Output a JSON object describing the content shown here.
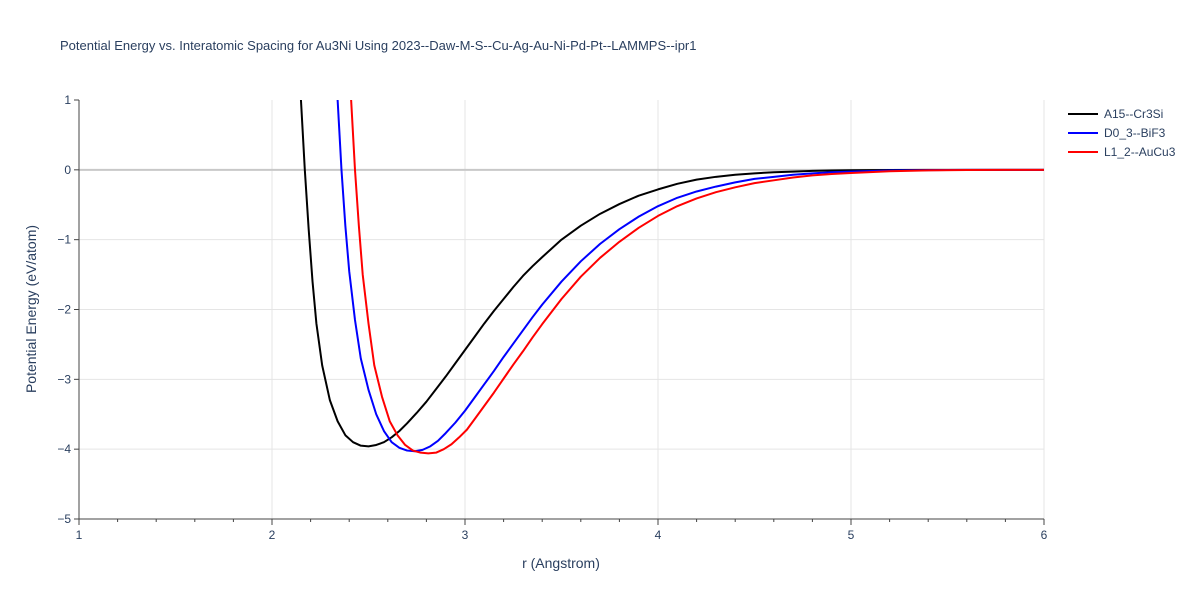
{
  "chart_data": {
    "type": "line",
    "title": "Potential Energy vs. Interatomic Spacing for Au3Ni Using 2023--Daw-M-S--Cu-Ag-Au-Ni-Pd-Pt--LAMMPS--ipr1",
    "xlabel": "r (Angstrom)",
    "ylabel": "Potential Energy (eV/atom)",
    "xlim": [
      1,
      6
    ],
    "ylim": [
      -5,
      1
    ],
    "x_ticks": [
      1,
      2,
      3,
      4,
      5,
      6
    ],
    "y_ticks": [
      1,
      0,
      -1,
      -2,
      -3,
      -4,
      -5
    ],
    "x_tick_labels": [
      "1",
      "2",
      "3",
      "4",
      "5",
      "6"
    ],
    "y_tick_labels": [
      "1",
      "0",
      "−1",
      "−2",
      "−3",
      "−4",
      "−5"
    ],
    "grid": true,
    "legend_position": "top-right",
    "series": [
      {
        "name": "A15--Cr3Si",
        "color": "#000000",
        "x": [
          2.15,
          2.17,
          2.19,
          2.21,
          2.23,
          2.26,
          2.3,
          2.34,
          2.38,
          2.42,
          2.46,
          2.5,
          2.54,
          2.58,
          2.62,
          2.66,
          2.7,
          2.75,
          2.8,
          2.85,
          2.9,
          2.95,
          3.0,
          3.05,
          3.1,
          3.15,
          3.2,
          3.25,
          3.3,
          3.35,
          3.4,
          3.5,
          3.6,
          3.7,
          3.8,
          3.9,
          4.0,
          4.1,
          4.2,
          4.3,
          4.4,
          4.5,
          4.6,
          4.7,
          4.8,
          4.9,
          5.0,
          5.2,
          5.4,
          5.6,
          5.8,
          6.0
        ],
        "y": [
          1.0,
          0.0,
          -0.85,
          -1.6,
          -2.2,
          -2.8,
          -3.3,
          -3.6,
          -3.8,
          -3.9,
          -3.95,
          -3.96,
          -3.94,
          -3.9,
          -3.83,
          -3.74,
          -3.63,
          -3.48,
          -3.32,
          -3.14,
          -2.96,
          -2.77,
          -2.58,
          -2.39,
          -2.2,
          -2.02,
          -1.85,
          -1.68,
          -1.52,
          -1.38,
          -1.25,
          -1.0,
          -0.8,
          -0.63,
          -0.49,
          -0.37,
          -0.28,
          -0.2,
          -0.14,
          -0.1,
          -0.07,
          -0.05,
          -0.035,
          -0.025,
          -0.015,
          -0.01,
          -0.006,
          -0.002,
          0.0,
          0.0,
          0.0,
          0.0
        ]
      },
      {
        "name": "D0_3--BiF3",
        "color": "#0000ff",
        "x": [
          2.34,
          2.36,
          2.38,
          2.4,
          2.43,
          2.46,
          2.5,
          2.54,
          2.58,
          2.62,
          2.66,
          2.7,
          2.74,
          2.78,
          2.82,
          2.86,
          2.9,
          2.95,
          3.0,
          3.05,
          3.1,
          3.15,
          3.2,
          3.25,
          3.3,
          3.35,
          3.4,
          3.5,
          3.6,
          3.7,
          3.8,
          3.9,
          4.0,
          4.1,
          4.2,
          4.3,
          4.4,
          4.5,
          4.6,
          4.7,
          4.8,
          4.9,
          5.0,
          5.2,
          5.4,
          5.6,
          5.8,
          6.0
        ],
        "y": [
          1.0,
          0.0,
          -0.8,
          -1.45,
          -2.15,
          -2.7,
          -3.15,
          -3.5,
          -3.74,
          -3.9,
          -3.98,
          -4.02,
          -4.03,
          -4.01,
          -3.96,
          -3.88,
          -3.77,
          -3.62,
          -3.45,
          -3.26,
          -3.07,
          -2.88,
          -2.68,
          -2.49,
          -2.3,
          -2.11,
          -1.93,
          -1.6,
          -1.31,
          -1.06,
          -0.85,
          -0.67,
          -0.52,
          -0.4,
          -0.31,
          -0.24,
          -0.18,
          -0.13,
          -0.1,
          -0.07,
          -0.05,
          -0.035,
          -0.025,
          -0.01,
          -0.004,
          -0.001,
          0.0,
          0.0
        ]
      },
      {
        "name": "L1_2--AuCu3",
        "color": "#ff0000",
        "x": [
          2.41,
          2.43,
          2.45,
          2.47,
          2.5,
          2.53,
          2.57,
          2.61,
          2.65,
          2.69,
          2.73,
          2.77,
          2.81,
          2.85,
          2.89,
          2.93,
          2.97,
          3.01,
          3.05,
          3.1,
          3.15,
          3.2,
          3.25,
          3.3,
          3.35,
          3.4,
          3.5,
          3.6,
          3.7,
          3.8,
          3.9,
          4.0,
          4.1,
          4.2,
          4.3,
          4.4,
          4.5,
          4.6,
          4.7,
          4.8,
          4.9,
          5.0,
          5.2,
          5.4,
          5.6,
          5.8,
          6.0
        ],
        "y": [
          1.0,
          0.0,
          -0.8,
          -1.5,
          -2.2,
          -2.8,
          -3.25,
          -3.6,
          -3.8,
          -3.94,
          -4.02,
          -4.05,
          -4.06,
          -4.05,
          -4.0,
          -3.93,
          -3.83,
          -3.72,
          -3.57,
          -3.38,
          -3.19,
          -2.99,
          -2.79,
          -2.6,
          -2.4,
          -2.21,
          -1.85,
          -1.53,
          -1.26,
          -1.03,
          -0.83,
          -0.66,
          -0.52,
          -0.41,
          -0.32,
          -0.25,
          -0.19,
          -0.15,
          -0.11,
          -0.08,
          -0.06,
          -0.045,
          -0.02,
          -0.008,
          -0.002,
          0.0,
          0.0
        ]
      }
    ]
  }
}
